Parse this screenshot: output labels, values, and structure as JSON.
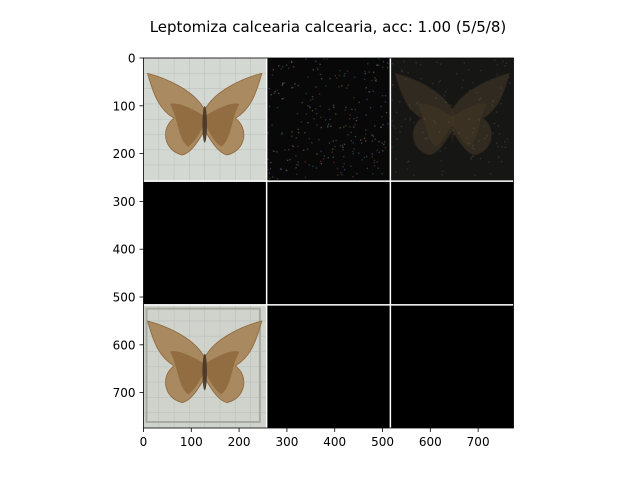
{
  "chart_data": {
    "type": "heatmap",
    "title": "Leptomiza calcearia calcearia, acc: 1.00 (5/5/8)",
    "xlim": [
      0,
      774
    ],
    "ylim": [
      774,
      0
    ],
    "xticks": [
      0,
      100,
      200,
      300,
      400,
      500,
      600,
      700
    ],
    "yticks": [
      0,
      100,
      200,
      300,
      400,
      500,
      600,
      700
    ],
    "grid_rows": 3,
    "grid_cols": 3,
    "tile_size": 256,
    "tile_gap": 3,
    "tiles": [
      {
        "row": 0,
        "col": 0,
        "content": "moth-photo",
        "background": "#d4d8d3"
      },
      {
        "row": 0,
        "col": 1,
        "content": "dark-noise",
        "background": "#080808"
      },
      {
        "row": 0,
        "col": 2,
        "content": "dark-moth",
        "background": "#161614"
      },
      {
        "row": 1,
        "col": 0,
        "content": "blank",
        "background": "#000000"
      },
      {
        "row": 1,
        "col": 1,
        "content": "blank",
        "background": "#000000"
      },
      {
        "row": 1,
        "col": 2,
        "content": "blank",
        "background": "#000000"
      },
      {
        "row": 2,
        "col": 0,
        "content": "moth-photo-framed",
        "background": "#cfd3cc"
      },
      {
        "row": 2,
        "col": 1,
        "content": "blank",
        "background": "#000000"
      },
      {
        "row": 2,
        "col": 2,
        "content": "blank",
        "background": "#000000"
      }
    ],
    "grid_separator_color": "#ffffff",
    "moth_colors": {
      "wing_outer": "#a8865a",
      "wing_inner": "#8a6236",
      "body": "#4a3a28"
    }
  }
}
